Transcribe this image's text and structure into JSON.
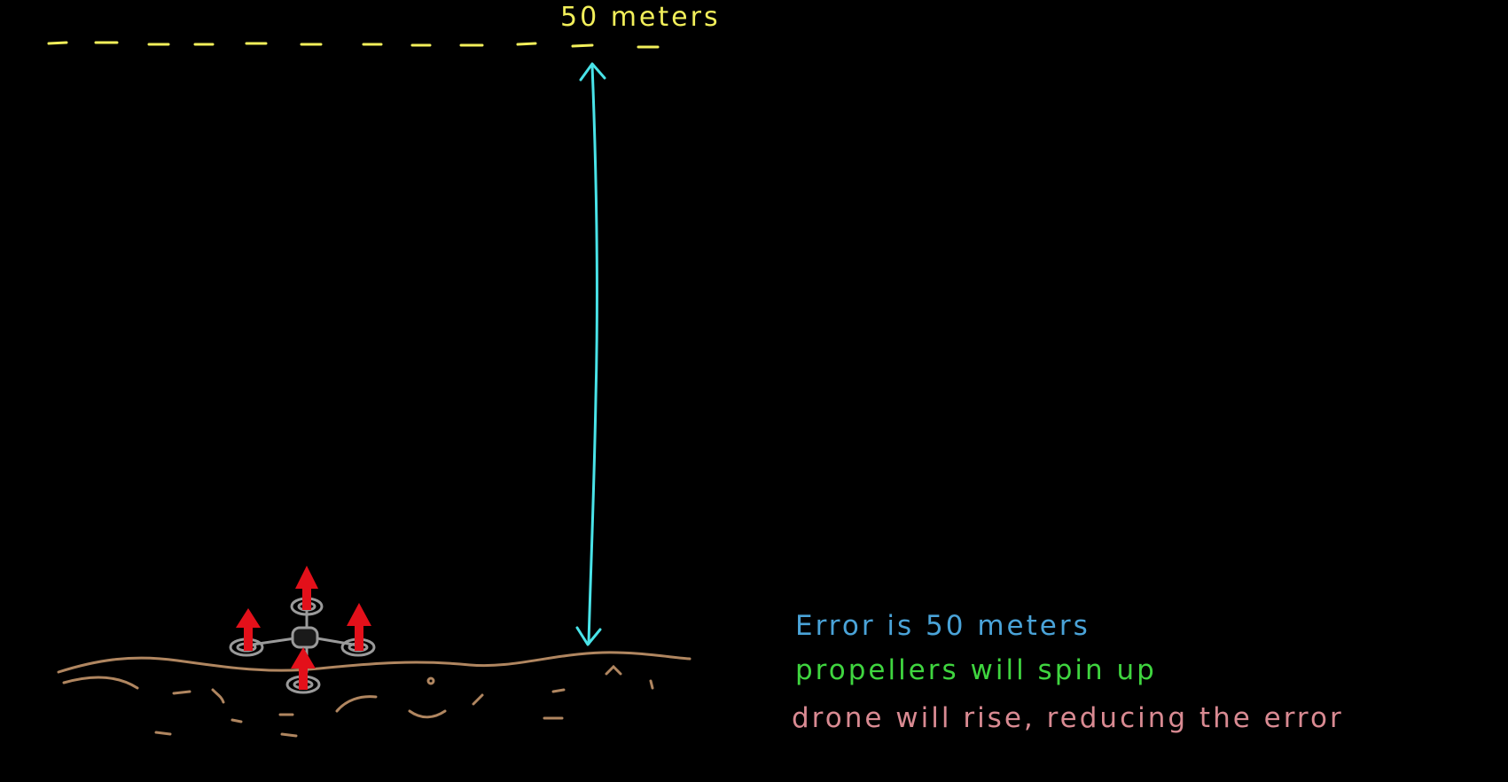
{
  "target": {
    "label": "50 meters"
  },
  "notes": {
    "error": "Error is 50 meters",
    "propellers": "propellers will spin up",
    "rise": "drone will rise, reducing the error"
  },
  "colors": {
    "background": "#000000",
    "target_line": "#f2ef5a",
    "distance_arrow": "#49e3e8",
    "ground": "#b08660",
    "drone_body": "#9a9a9a",
    "thrust_arrows": "#e3101a",
    "error_text": "#4aa3d8",
    "propeller_text": "#3fd53f",
    "rise_text": "#d98a92"
  },
  "icons": {
    "drone": "quadcopter-icon",
    "thrust": "up-arrow-icon"
  }
}
